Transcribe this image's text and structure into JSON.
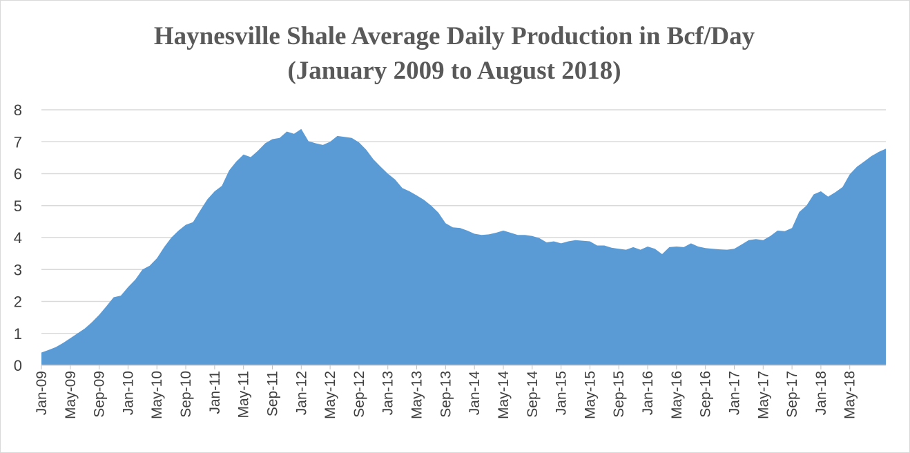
{
  "chart_data": {
    "type": "area",
    "title": "Haynesville Shale Average Daily Production in Bcf/Day",
    "subtitle": "(January 2009 to August 2018)",
    "xlabel": "",
    "ylabel": "",
    "ylim": [
      0,
      8
    ],
    "yticks": [
      0,
      1,
      2,
      3,
      4,
      5,
      6,
      7,
      8
    ],
    "grid": true,
    "legend": "none",
    "color": "#5b9bd5",
    "xticks": [
      "Jan-09",
      "May-09",
      "Sep-09",
      "Jan-10",
      "May-10",
      "Sep-10",
      "Jan-11",
      "May-11",
      "Sep-11",
      "Jan-12",
      "May-12",
      "Sep-12",
      "Jan-13",
      "May-13",
      "Sep-13",
      "Jan-14",
      "May-14",
      "Sep-14",
      "Jan-15",
      "May-15",
      "Sep-15",
      "Jan-16",
      "May-16",
      "Sep-16",
      "Jan-17",
      "May-17",
      "Sep-17",
      "Jan-18",
      "May-18"
    ],
    "start_month": "Jan-09",
    "end_month": "Aug-18",
    "series": [
      {
        "name": "Average Daily Production (Bcf/Day)",
        "values": [
          0.4,
          0.48,
          0.57,
          0.7,
          0.85,
          1.0,
          1.15,
          1.35,
          1.58,
          1.85,
          2.13,
          2.18,
          2.45,
          2.68,
          3.0,
          3.12,
          3.35,
          3.7,
          4.0,
          4.22,
          4.4,
          4.48,
          4.85,
          5.2,
          5.45,
          5.62,
          6.1,
          6.38,
          6.6,
          6.52,
          6.72,
          6.95,
          7.08,
          7.12,
          7.32,
          7.25,
          7.4,
          7.02,
          6.95,
          6.9,
          7.0,
          7.18,
          7.15,
          7.12,
          6.98,
          6.75,
          6.45,
          6.22,
          6.0,
          5.82,
          5.55,
          5.45,
          5.32,
          5.18,
          5.0,
          4.78,
          4.45,
          4.32,
          4.3,
          4.22,
          4.12,
          4.08,
          4.1,
          4.15,
          4.22,
          4.15,
          4.08,
          4.08,
          4.05,
          3.98,
          3.85,
          3.88,
          3.82,
          3.88,
          3.92,
          3.9,
          3.88,
          3.75,
          3.75,
          3.68,
          3.65,
          3.62,
          3.7,
          3.62,
          3.72,
          3.65,
          3.48,
          3.7,
          3.72,
          3.7,
          3.82,
          3.72,
          3.67,
          3.65,
          3.63,
          3.62,
          3.65,
          3.78,
          3.92,
          3.95,
          3.92,
          4.05,
          4.22,
          4.2,
          4.3,
          4.8,
          5.0,
          5.35,
          5.45,
          5.28,
          5.42,
          5.58,
          5.98,
          6.22,
          6.38,
          6.55,
          6.68,
          6.78
        ]
      }
    ]
  }
}
